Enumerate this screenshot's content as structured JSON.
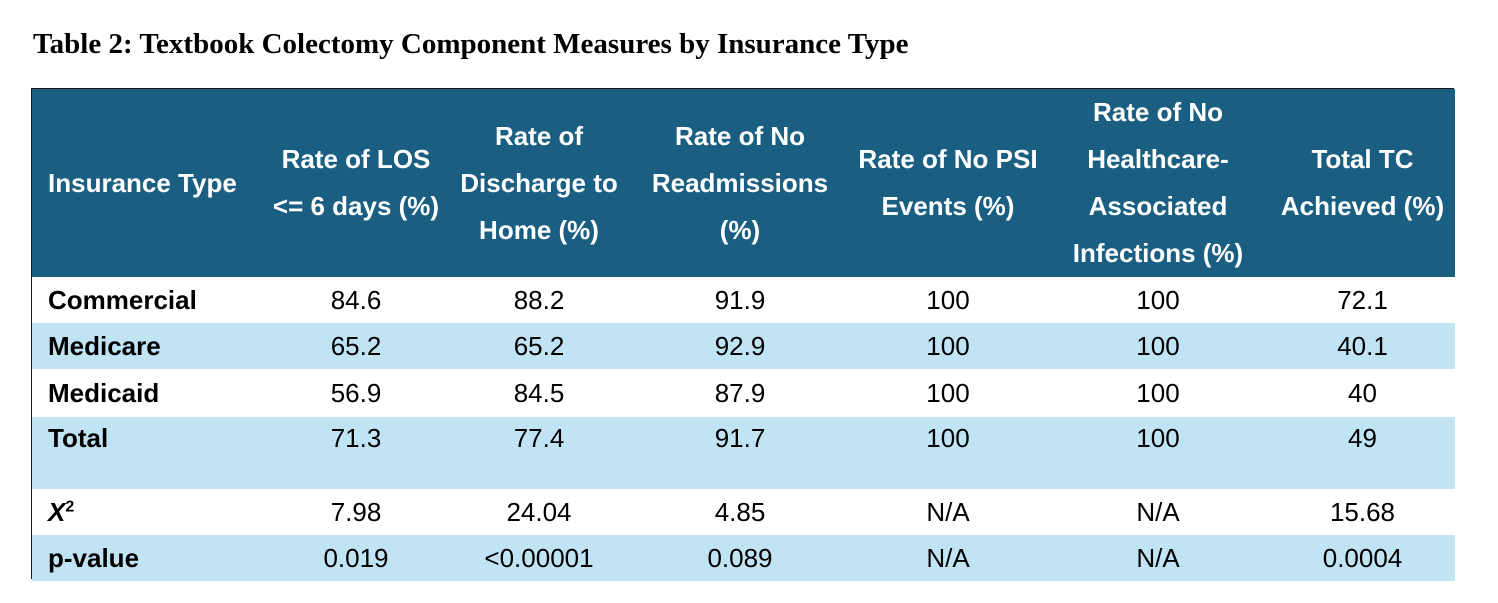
{
  "title": "Table 2: Textbook Colectomy Component Measures by Insurance Type",
  "colors": {
    "header_bg": "#1a5f82",
    "header_text": "#ffffff",
    "band_blue": "#c1e4f5",
    "band_white": "#ffffff"
  },
  "table": {
    "headers": [
      "Insurance Type",
      "Rate of LOS <= 6 days (%)",
      "Rate of Discharge to Home (%)",
      "Rate of No Readmissions (%)",
      "Rate of No PSI Events (%)",
      "Rate of No Healthcare-Associated Infections (%)",
      "Total TC Achieved (%)"
    ],
    "rows": [
      {
        "label": "Commercial",
        "values": [
          "84.6",
          "88.2",
          "91.9",
          "100",
          "100",
          "72.1"
        ]
      },
      {
        "label": "Medicare",
        "values": [
          "65.2",
          "65.2",
          "92.9",
          "100",
          "100",
          "40.1"
        ]
      },
      {
        "label": "Medicaid",
        "values": [
          "56.9",
          "84.5",
          "87.9",
          "100",
          "100",
          "40"
        ]
      },
      {
        "label": "Total",
        "values": [
          "71.3",
          "77.4",
          "91.7",
          "100",
          "100",
          "49"
        ]
      },
      {
        "label_base": "X",
        "label_sup": "2",
        "values": [
          "7.98",
          "24.04",
          "4.85",
          "N/A",
          "N/A",
          "15.68"
        ]
      },
      {
        "label": "p-value",
        "values": [
          "0.019",
          "<0.00001",
          "0.089",
          "N/A",
          "N/A",
          "0.0004"
        ]
      }
    ]
  }
}
